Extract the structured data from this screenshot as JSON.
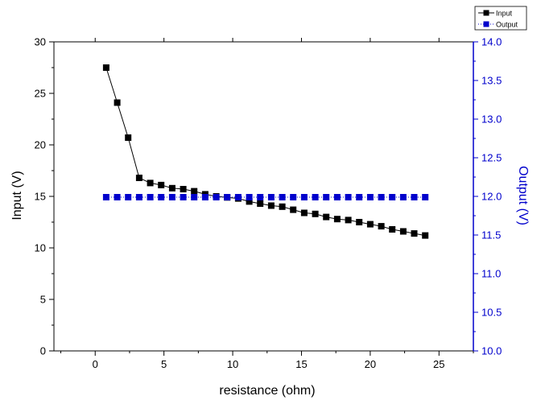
{
  "chart_data": {
    "type": "line",
    "title": "",
    "xlabel": "resistance (ohm)",
    "ylabel": "Input (V)",
    "y2label": "Output (V)",
    "xlim": [
      -3,
      27.5
    ],
    "ylim": [
      0,
      30
    ],
    "y2lim": [
      10.0,
      14.0
    ],
    "x_ticks": [
      0,
      5,
      10,
      15,
      20,
      25
    ],
    "y_ticks": [
      0,
      5,
      10,
      15,
      20,
      25,
      30
    ],
    "y2_ticks": [
      "10.0",
      "10.5",
      "11.0",
      "11.5",
      "12.0",
      "12.5",
      "13.0",
      "13.5",
      "14.0"
    ],
    "grid": false,
    "legend_position": "top-right",
    "series": [
      {
        "name": "Input",
        "axis": "left",
        "color": "#000000",
        "marker": "square",
        "line": "solid",
        "x": [
          0.8,
          1.6,
          2.4,
          3.2,
          4.0,
          4.8,
          5.6,
          6.4,
          7.2,
          8.0,
          8.8,
          9.6,
          10.4,
          11.2,
          12.0,
          12.8,
          13.6,
          14.4,
          15.2,
          16.0,
          16.8,
          17.6,
          18.4,
          19.2,
          20.0,
          20.8,
          21.6,
          22.4,
          23.2,
          24.0
        ],
        "values": [
          27.5,
          24.1,
          20.7,
          16.8,
          16.3,
          16.1,
          15.8,
          15.7,
          15.5,
          15.2,
          15.0,
          14.9,
          14.8,
          14.5,
          14.3,
          14.1,
          14.0,
          13.7,
          13.4,
          13.3,
          13.0,
          12.8,
          12.7,
          12.5,
          12.3,
          12.1,
          11.8,
          11.6,
          11.4,
          11.2
        ]
      },
      {
        "name": "Output",
        "axis": "right",
        "color": "#0000cc",
        "marker": "square",
        "line": "dotted",
        "x": [
          0.8,
          1.6,
          2.4,
          3.2,
          4.0,
          4.8,
          5.6,
          6.4,
          7.2,
          8.0,
          8.8,
          9.6,
          10.4,
          11.2,
          12.0,
          12.8,
          13.6,
          14.4,
          15.2,
          16.0,
          16.8,
          17.6,
          18.4,
          19.2,
          20.0,
          20.8,
          21.6,
          22.4,
          23.2,
          24.0
        ],
        "values": [
          11.99,
          11.99,
          11.99,
          11.99,
          11.99,
          11.99,
          11.99,
          11.99,
          11.99,
          11.99,
          11.99,
          11.99,
          11.99,
          11.99,
          11.99,
          11.99,
          11.99,
          11.99,
          11.99,
          11.99,
          11.99,
          11.99,
          11.99,
          11.99,
          11.99,
          11.99,
          11.99,
          11.99,
          11.99,
          11.99
        ]
      }
    ]
  }
}
